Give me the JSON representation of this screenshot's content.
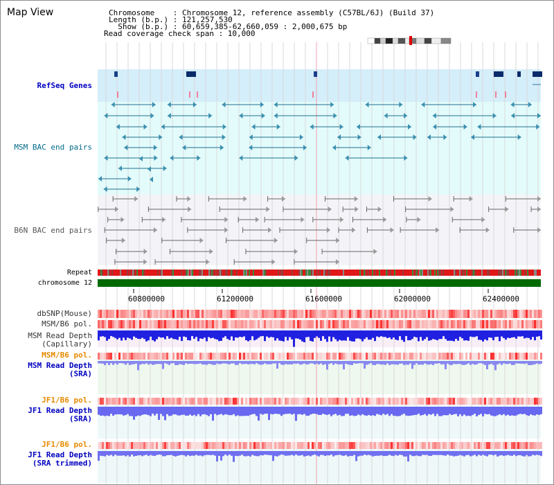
{
  "title": "Map View",
  "info": {
    "line1": "Chromosome    : Chromosome 12, reference assembly (C57BL/6J) (Build 37)",
    "line2": "Length (b.p.) : 121,257,530",
    "line3": "  Show (b.p.) : 60,659,385-62,660,059 : 2,000,675 bp",
    "line4": "Read coverage check span : 10,000"
  },
  "labels": {
    "refseq": "RefSeq Genes",
    "msm_bac": "MSM BAC end pairs",
    "b6n_bac": "B6N BAC end pairs",
    "repeat": "Repeat",
    "chrom": "chromosome 12",
    "dbsnp": "dbSNP(Mouse)",
    "msm_pol": "MSM/B6 pol.",
    "msm_depth_cap1": "MSM Read Depth",
    "msm_depth_cap2": "(Capillary)",
    "msm_pol2": "MSM/B6 pol.",
    "msm_depth_sra1": "MSM Read Depth",
    "msm_depth_sra2": "(SRA)",
    "jf1_pol": "JF1/B6 pol.",
    "jf1_depth1": "JF1 Read Depth",
    "jf1_depth2": "(SRA)",
    "jf1_pol2": "JF1/B6 pol.",
    "jf1_depth_t1": "JF1 Read Depth",
    "jf1_depth_t2": "(SRA trimmed)"
  },
  "axis_ticks": [
    "60800000",
    "61200000",
    "61600000",
    "62000000",
    "62400000"
  ],
  "colors": {
    "refseq_bg": "#d4eefa",
    "msm_bg": "#e3fbfb",
    "b6n_bg": "#f4f4f8",
    "depth_cap_bg": "#f8eef8",
    "depth_sra_bg": "#eef8ee",
    "jf1_bg": "#eef8f8",
    "chrom_green": "#006a00",
    "label_blue": "#0000c0",
    "label_teal": "#006a8a",
    "label_gray": "#555555",
    "label_orange": "#e68a00"
  }
}
